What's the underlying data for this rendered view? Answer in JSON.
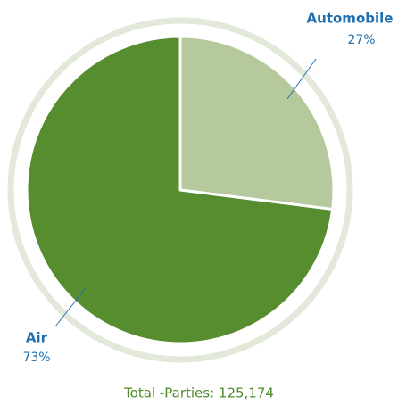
{
  "chart_data": {
    "type": "pie",
    "categories": [
      "Automobile",
      "Air"
    ],
    "values": [
      27,
      73
    ],
    "value_labels": [
      "27%",
      "73%"
    ],
    "colors": [
      "#b5c99d",
      "#558d2f"
    ],
    "footer": "Total -Parties: 125,174"
  }
}
